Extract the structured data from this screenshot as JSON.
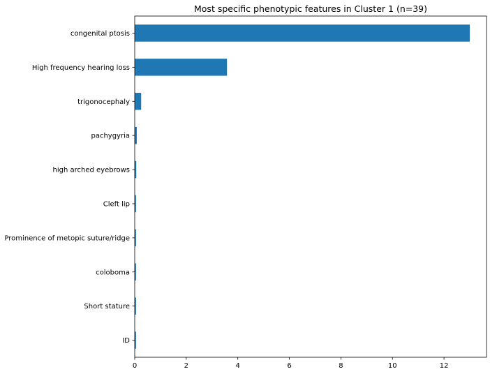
{
  "chart_data": {
    "type": "bar",
    "orientation": "horizontal",
    "title": "Most specific phenotypic features in Cluster 1 (n=39)",
    "xlabel": "",
    "ylabel": "",
    "categories": [
      "congenital ptosis",
      "High frequency hearing loss",
      "trigonocephaly",
      "pachygyria",
      "high arched eyebrows",
      "Cleft lip",
      "Prominence of metopic suture/ridge",
      "coloboma",
      "Short stature",
      "ID"
    ],
    "values": [
      13.0,
      3.58,
      0.25,
      0.08,
      0.06,
      0.05,
      0.05,
      0.05,
      0.05,
      0.05
    ],
    "xlim": [
      0,
      13.65
    ],
    "xticks": [
      0,
      2,
      4,
      6,
      8,
      10,
      12
    ],
    "xtick_labels": [
      "0",
      "2",
      "4",
      "6",
      "8",
      "10",
      "12"
    ],
    "bar_color": "#1f77b4",
    "grid": false,
    "legend": "none"
  }
}
